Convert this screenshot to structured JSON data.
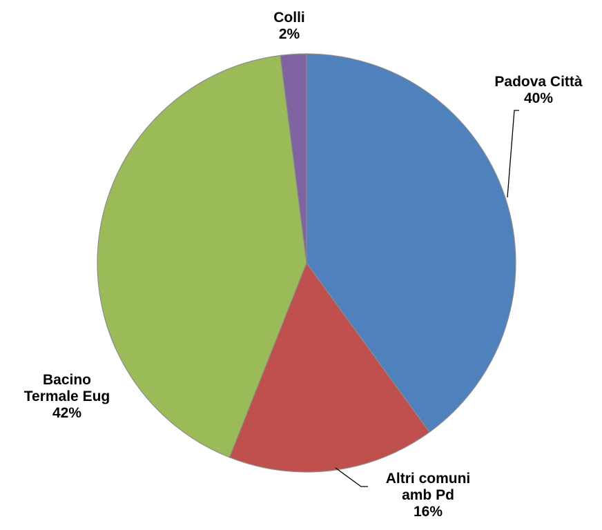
{
  "chart_data": {
    "type": "pie",
    "title": "",
    "start_angle_deg": 0,
    "direction": "clockwise",
    "slices": [
      {
        "name": "Padova Città",
        "label_lines": [
          "Padova Città"
        ],
        "percent_label": "40%",
        "value": 40,
        "color": "#4f81bd"
      },
      {
        "name": "Altri comuni amb Pd",
        "label_lines": [
          "Altri comuni",
          "amb Pd"
        ],
        "percent_label": "16%",
        "value": 16,
        "color": "#c0504d"
      },
      {
        "name": "Bacino Termale Eug",
        "label_lines": [
          "Bacino",
          "Termale Eug"
        ],
        "percent_label": "42%",
        "value": 42,
        "color": "#9bbb59"
      },
      {
        "name": "Colli",
        "label_lines": [
          "Colli"
        ],
        "percent_label": "2%",
        "value": 2,
        "color": "#8064a2"
      }
    ],
    "legend": false,
    "grid": false
  }
}
